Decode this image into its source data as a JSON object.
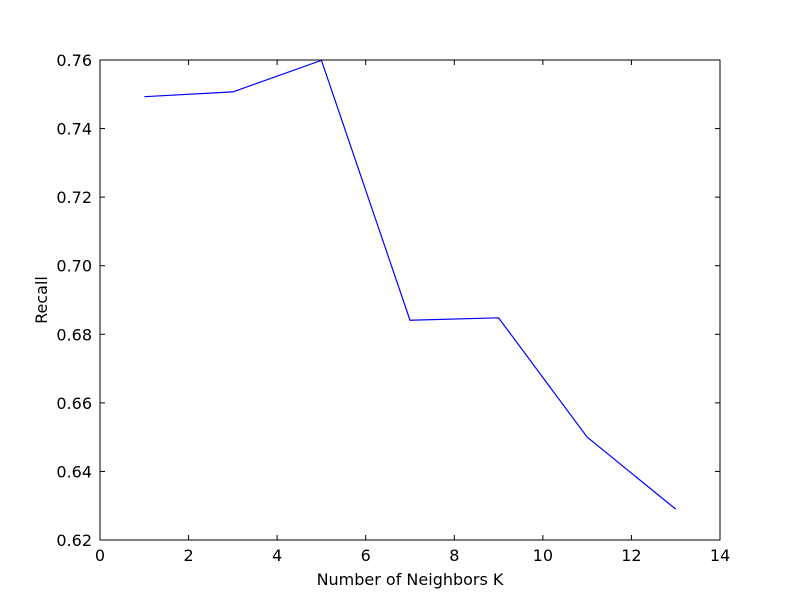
{
  "chart_data": {
    "type": "line",
    "title": "",
    "xlabel": "Number of Neighbors K",
    "ylabel": "Recall",
    "xlim": [
      0,
      14
    ],
    "ylim": [
      0.62,
      0.76
    ],
    "xticks": [
      0,
      2,
      4,
      6,
      8,
      10,
      12,
      14
    ],
    "xtick_labels": [
      "0",
      "2",
      "4",
      "6",
      "8",
      "10",
      "12",
      "14"
    ],
    "yticks": [
      0.62,
      0.64,
      0.66,
      0.68,
      0.7,
      0.72,
      0.74,
      0.76
    ],
    "ytick_labels": [
      "0.62",
      "0.64",
      "0.66",
      "0.68",
      "0.70",
      "0.72",
      "0.74",
      "0.76"
    ],
    "grid": false,
    "legend": "none",
    "series": [
      {
        "color": "#0000ff",
        "x": [
          1,
          3,
          5,
          7,
          9,
          11,
          13
        ],
        "y": [
          0.7493,
          0.7507,
          0.7599,
          0.6841,
          0.6848,
          0.65,
          0.629
        ]
      }
    ]
  }
}
